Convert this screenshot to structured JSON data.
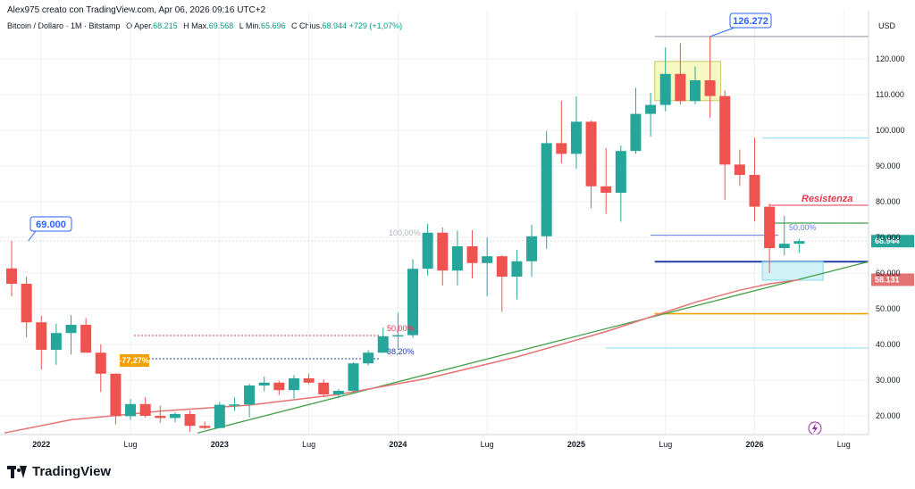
{
  "header": {
    "attribution": "Alex975 creato con TradingView.com, Apr 06, 2026 09:16 UTC+2",
    "symbol": "Bitcoin / Dollaro · 1M · Bitstamp",
    "open_label": "O",
    "open_key": "Aper.",
    "open_value": "68.215",
    "high_label": "H",
    "high_key": "Max.",
    "high_value": "69.568",
    "low_label": "L",
    "low_key": "Min.",
    "low_value": "65.696",
    "close_label": "C",
    "close_key": "Chius.",
    "close_value": "68.944",
    "change": "+729 (+1,07%)"
  },
  "currency": "USD",
  "footer": {
    "brand": "TradingView",
    "logo_icon": "tradingview-logo-icon"
  },
  "colors": {
    "up": "#26a69a",
    "down": "#ef5350",
    "ma": "#e57373",
    "trend": "#43a047",
    "resistance": "#e53950",
    "support_blue": "#1e3fa8",
    "orange": "#f4a100",
    "fib": "#5c7ce0",
    "cyan": "#80d8e8",
    "grid": "#eef0f4"
  },
  "chart_data": {
    "type": "candlestick",
    "x_tick_labels": [
      "2022",
      "Lug",
      "2023",
      "Lug",
      "2024",
      "Lug",
      "2025",
      "Lug",
      "2026",
      "Lug"
    ],
    "y_tick_labels": [
      "20.000",
      "30.000",
      "40.000",
      "50.000",
      "60.000",
      "70.000",
      "80.000",
      "90.000",
      "100.000",
      "110.000",
      "120.000"
    ],
    "ylim": [
      15000,
      127000
    ],
    "last_price_label": "68.944",
    "ma_price_label": "58.131",
    "candles": [
      [
        "2021-11",
        61300,
        69000,
        53500,
        57000
      ],
      [
        "2021-12",
        57000,
        59000,
        42000,
        46200
      ],
      [
        "2022-01",
        46200,
        48000,
        33000,
        38500
      ],
      [
        "2022-02",
        38500,
        45800,
        34300,
        43200
      ],
      [
        "2022-03",
        43200,
        48200,
        37200,
        45500
      ],
      [
        "2022-04",
        45500,
        47400,
        37700,
        37700
      ],
      [
        "2022-05",
        37700,
        40000,
        26700,
        31800
      ],
      [
        "2022-06",
        31800,
        31900,
        17600,
        19900
      ],
      [
        "2022-07",
        19900,
        24700,
        18800,
        23300
      ],
      [
        "2022-08",
        23300,
        25200,
        19500,
        20000
      ],
      [
        "2022-09",
        20000,
        22800,
        18100,
        19400
      ],
      [
        "2022-10",
        19400,
        21000,
        18200,
        20500
      ],
      [
        "2022-11",
        20500,
        21500,
        15500,
        17200
      ],
      [
        "2022-12",
        17200,
        18400,
        16300,
        16600
      ],
      [
        "2023-01",
        16600,
        23900,
        16500,
        23100
      ],
      [
        "2023-02",
        23100,
        25200,
        21400,
        23200
      ],
      [
        "2023-03",
        23200,
        29000,
        19600,
        28500
      ],
      [
        "2023-04",
        28500,
        31000,
        26900,
        29300
      ],
      [
        "2023-05",
        29300,
        29800,
        25800,
        27200
      ],
      [
        "2023-06",
        27200,
        31400,
        24800,
        30500
      ],
      [
        "2023-07",
        30500,
        31800,
        28900,
        29300
      ],
      [
        "2023-08",
        29300,
        30200,
        25200,
        26000
      ],
      [
        "2023-09",
        26000,
        27500,
        24900,
        27000
      ],
      [
        "2023-10",
        27000,
        35000,
        26500,
        34700
      ],
      [
        "2023-11",
        34700,
        38400,
        34100,
        37700
      ],
      [
        "2023-12",
        37700,
        44700,
        37600,
        42300
      ],
      [
        "2024-01",
        42300,
        48900,
        38500,
        42600
      ],
      [
        "2024-02",
        42600,
        63900,
        41900,
        61200
      ],
      [
        "2024-03",
        61200,
        73800,
        59300,
        71300
      ],
      [
        "2024-04",
        71300,
        72800,
        56500,
        60700
      ],
      [
        "2024-05",
        60700,
        71900,
        56600,
        67500
      ],
      [
        "2024-06",
        67500,
        72000,
        58500,
        62800
      ],
      [
        "2024-07",
        62800,
        70000,
        53500,
        64700
      ],
      [
        "2024-08",
        64700,
        65000,
        49100,
        59000
      ],
      [
        "2024-09",
        59000,
        66500,
        52600,
        63300
      ],
      [
        "2024-10",
        63300,
        73600,
        58900,
        70300
      ],
      [
        "2024-11",
        70300,
        99800,
        66800,
        96400
      ],
      [
        "2024-12",
        96400,
        108300,
        90700,
        93400
      ],
      [
        "2025-01",
        93400,
        109500,
        89200,
        102400
      ],
      [
        "2025-02",
        102400,
        102700,
        78200,
        84300
      ],
      [
        "2025-03",
        84300,
        95000,
        76600,
        82500
      ],
      [
        "2025-04",
        82500,
        95700,
        74400,
        94200
      ],
      [
        "2025-05",
        94200,
        111900,
        93400,
        104600
      ],
      [
        "2025-06",
        104600,
        110500,
        98200,
        107100
      ],
      [
        "2025-07",
        107100,
        123200,
        105300,
        115800
      ],
      [
        "2025-08",
        115800,
        124400,
        107300,
        108200
      ],
      [
        "2025-09",
        108200,
        117900,
        107300,
        114000
      ],
      [
        "2025-10",
        114000,
        126272,
        103500,
        109600
      ],
      [
        "2025-11",
        109600,
        111200,
        80500,
        90400
      ],
      [
        "2025-12",
        90400,
        94600,
        84400,
        87500
      ],
      [
        "2026-01",
        87500,
        97900,
        74500,
        78600
      ],
      [
        "2026-02",
        78600,
        79500,
        60000,
        67000
      ],
      [
        "2026-03",
        67000,
        76000,
        65000,
        68215
      ],
      [
        "2026-04",
        68215,
        69568,
        65696,
        68944
      ]
    ],
    "moving_average": [
      [
        "2021-09",
        15200
      ],
      [
        "2022-03",
        18900
      ],
      [
        "2022-09",
        21300
      ],
      [
        "2023-03",
        23000
      ],
      [
        "2023-09",
        26000
      ],
      [
        "2024-03",
        30500
      ],
      [
        "2024-09",
        36500
      ],
      [
        "2025-03",
        43600
      ],
      [
        "2025-09",
        51800
      ],
      [
        "2025-12",
        55200
      ],
      [
        "2026-02",
        57000
      ],
      [
        "2026-04",
        58131
      ]
    ],
    "annotations": {
      "ath_2021_label": "69.000",
      "ath_2025_label": "126.272",
      "drawdown_label": "-77,27%",
      "fib_100_label": "100,00%",
      "fib_50_label": "50,00%",
      "fib_38_label": "38,20%",
      "retrace_label": "50,00%",
      "resistance_label": "Resistenza",
      "horizontal_levels": {
        "resistance": 79000,
        "green": 74000,
        "blue_thick": 63200,
        "orange": 48600,
        "cyan_upper": 97800,
        "cyan_lower": 39000,
        "fib_blue": 70600,
        "gray_top": 126272,
        "red_dotted": 42500,
        "blue_dotted": 36000,
        "fib_100": 69000
      },
      "support_box_range": [
        58000,
        63200
      ],
      "top_box_range": [
        108300,
        119300
      ]
    },
    "lightning_icon": "lightning-icon"
  }
}
